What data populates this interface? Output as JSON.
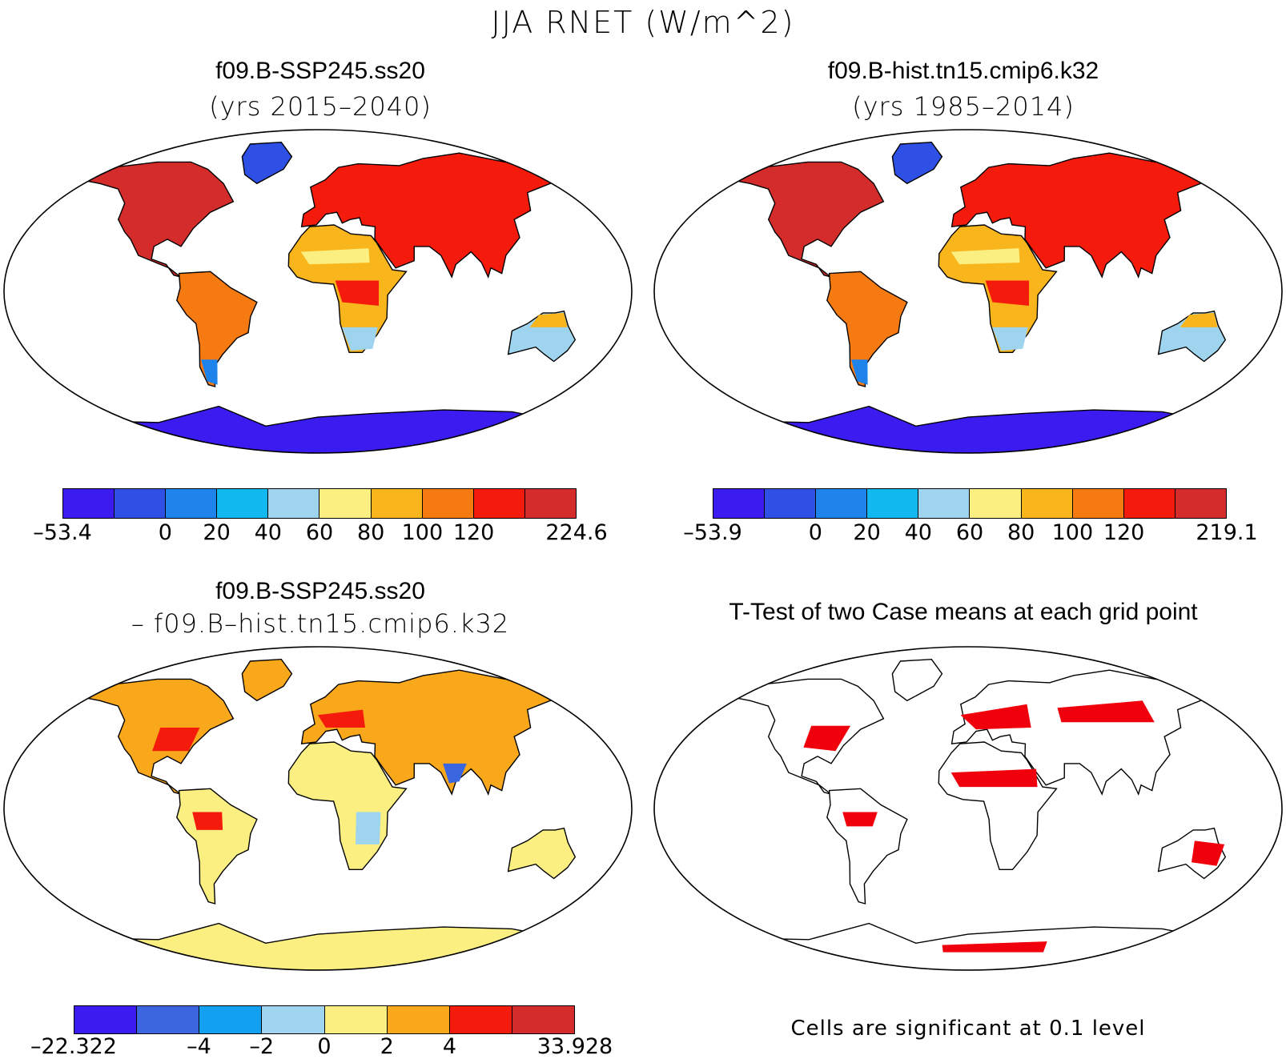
{
  "title": "JJA RNET (W/m^2)",
  "panels": [
    {
      "title": "f09.B-SSP245.ss20",
      "subtitle": "(yrs 2015–2040)"
    },
    {
      "title": "f09.B-hist.tn15.cmip6.k32",
      "subtitle": "(yrs 1985–2014)"
    },
    {
      "title": "f09.B-SSP245.ss20",
      "subtitle": "– f09.B–hist.tn15.cmip6.k32"
    },
    {
      "title": "T-Test of two Case means at each grid point"
    }
  ],
  "colorbar_main": {
    "colors": [
      "#3b1cf0",
      "#2e50e4",
      "#1e84ec",
      "#12b8f0",
      "#9ed4ee",
      "#fbef82",
      "#f8b51c",
      "#f67a12",
      "#f41a0c",
      "#d42b2b"
    ],
    "labels_a": [
      "–53.4",
      "0",
      "20",
      "40",
      "60",
      "80",
      "100",
      "120",
      "224.6"
    ],
    "labels_b": [
      "–53.9",
      "0",
      "20",
      "40",
      "60",
      "80",
      "100",
      "120",
      "219.1"
    ]
  },
  "colorbar_diff": {
    "colors": [
      "#3b1cf0",
      "#3b66e0",
      "#12a0f0",
      "#9ed4ee",
      "#fbef82",
      "#f8a81a",
      "#f41a0c",
      "#d42b2b"
    ],
    "labels": [
      "–22.322",
      "–4",
      "–2",
      "0",
      "2",
      "4",
      "33.928"
    ]
  },
  "significance_color": "#f0000c",
  "note": "Cells are significant at 0.1 level"
}
